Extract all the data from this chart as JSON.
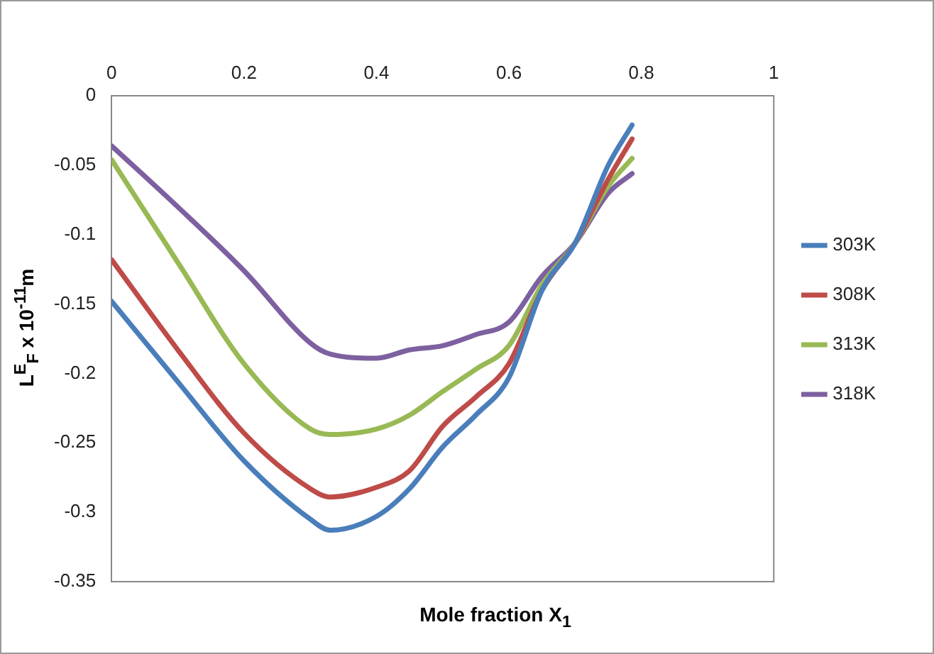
{
  "chart_data": {
    "type": "line",
    "xlabel": "Mole fraction X$_{1}$",
    "ylabel": "L$^{E}$$_{F}$ x 10$^{-11}$m",
    "x": [
      0,
      0.1,
      0.2,
      0.3,
      0.33,
      0.4,
      0.45,
      0.5,
      0.55,
      0.6,
      0.65,
      0.7,
      0.75,
      0.786
    ],
    "series": [
      {
        "name": "303K",
        "color": "#4a7ebb",
        "values": [
          -0.148,
          -0.206,
          -0.263,
          -0.305,
          -0.313,
          -0.303,
          -0.283,
          -0.253,
          -0.23,
          -0.203,
          -0.14,
          -0.106,
          -0.05,
          -0.021
        ]
      },
      {
        "name": "308K",
        "color": "#be4b48",
        "values": [
          -0.118,
          -0.183,
          -0.243,
          -0.283,
          -0.289,
          -0.282,
          -0.27,
          -0.238,
          -0.217,
          -0.193,
          -0.14,
          -0.106,
          -0.06,
          -0.031
        ]
      },
      {
        "name": "313K",
        "color": "#98b954",
        "values": [
          -0.046,
          -0.12,
          -0.193,
          -0.24,
          -0.244,
          -0.24,
          -0.23,
          -0.213,
          -0.197,
          -0.18,
          -0.136,
          -0.106,
          -0.065,
          -0.045
        ]
      },
      {
        "name": "318K",
        "color": "#7d60a0",
        "values": [
          -0.036,
          -0.08,
          -0.126,
          -0.178,
          -0.186,
          -0.189,
          -0.183,
          -0.18,
          -0.172,
          -0.163,
          -0.13,
          -0.106,
          -0.07,
          -0.056
        ]
      }
    ],
    "xlim": [
      0,
      1
    ],
    "xticks": [
      0,
      0.2,
      0.4,
      0.6,
      0.8,
      1
    ],
    "ylim": [
      -0.35,
      0
    ],
    "yticks": [
      -0.35,
      -0.3,
      -0.25,
      -0.2,
      -0.15,
      -0.1,
      -0.05,
      0
    ],
    "grid": false,
    "legend": "right",
    "marker": "none",
    "line_style": "solid"
  }
}
